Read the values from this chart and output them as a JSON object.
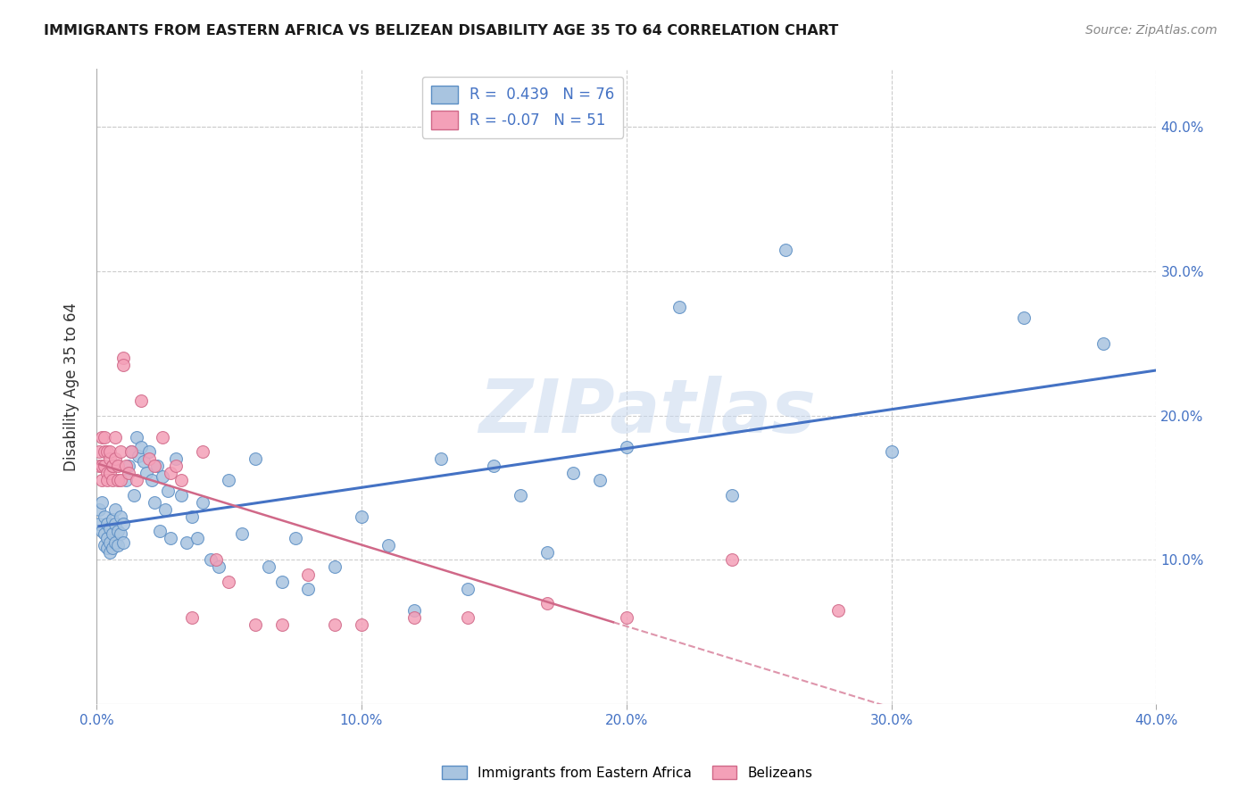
{
  "title": "IMMIGRANTS FROM EASTERN AFRICA VS BELIZEAN DISABILITY AGE 35 TO 64 CORRELATION CHART",
  "source": "Source: ZipAtlas.com",
  "ylabel": "Disability Age 35 to 64",
  "xlim": [
    0.0,
    0.4
  ],
  "ylim": [
    0.0,
    0.42
  ],
  "xtick_labels": [
    "0.0%",
    "",
    "10.0%",
    "",
    "20.0%",
    "",
    "30.0%",
    "",
    "40.0%"
  ],
  "xtick_vals": [
    0.0,
    0.05,
    0.1,
    0.15,
    0.2,
    0.25,
    0.3,
    0.35,
    0.4
  ],
  "xtick_display_labels": [
    "0.0%",
    "10.0%",
    "20.0%",
    "30.0%",
    "40.0%"
  ],
  "xtick_display_vals": [
    0.0,
    0.1,
    0.2,
    0.3,
    0.4
  ],
  "ytick_labels": [
    "10.0%",
    "20.0%",
    "30.0%",
    "40.0%"
  ],
  "ytick_vals": [
    0.1,
    0.2,
    0.3,
    0.4
  ],
  "blue_R": 0.439,
  "blue_N": 76,
  "pink_R": -0.07,
  "pink_N": 51,
  "blue_color": "#a8c4e0",
  "pink_color": "#f4a0b8",
  "blue_edge_color": "#5b8ec4",
  "pink_edge_color": "#d06888",
  "blue_line_color": "#4472c4",
  "pink_line_color": "#d06888",
  "watermark": "ZIPatlas",
  "blue_x": [
    0.001,
    0.001,
    0.002,
    0.002,
    0.003,
    0.003,
    0.003,
    0.004,
    0.004,
    0.004,
    0.005,
    0.005,
    0.005,
    0.006,
    0.006,
    0.006,
    0.007,
    0.007,
    0.007,
    0.008,
    0.008,
    0.009,
    0.009,
    0.01,
    0.01,
    0.011,
    0.012,
    0.013,
    0.014,
    0.015,
    0.016,
    0.017,
    0.018,
    0.019,
    0.02,
    0.021,
    0.022,
    0.023,
    0.024,
    0.025,
    0.026,
    0.027,
    0.028,
    0.03,
    0.032,
    0.034,
    0.036,
    0.038,
    0.04,
    0.043,
    0.046,
    0.05,
    0.055,
    0.06,
    0.065,
    0.07,
    0.075,
    0.08,
    0.09,
    0.1,
    0.11,
    0.12,
    0.13,
    0.14,
    0.15,
    0.16,
    0.17,
    0.18,
    0.19,
    0.2,
    0.22,
    0.24,
    0.26,
    0.3,
    0.35,
    0.38
  ],
  "blue_y": [
    0.135,
    0.125,
    0.14,
    0.12,
    0.13,
    0.118,
    0.11,
    0.125,
    0.115,
    0.108,
    0.122,
    0.112,
    0.105,
    0.128,
    0.118,
    0.108,
    0.135,
    0.125,
    0.112,
    0.12,
    0.11,
    0.13,
    0.118,
    0.125,
    0.112,
    0.155,
    0.165,
    0.175,
    0.145,
    0.185,
    0.172,
    0.178,
    0.168,
    0.16,
    0.175,
    0.155,
    0.14,
    0.165,
    0.12,
    0.158,
    0.135,
    0.148,
    0.115,
    0.17,
    0.145,
    0.112,
    0.13,
    0.115,
    0.14,
    0.1,
    0.095,
    0.155,
    0.118,
    0.17,
    0.095,
    0.085,
    0.115,
    0.08,
    0.095,
    0.13,
    0.11,
    0.065,
    0.17,
    0.08,
    0.165,
    0.145,
    0.105,
    0.16,
    0.155,
    0.178,
    0.275,
    0.145,
    0.315,
    0.175,
    0.268,
    0.25
  ],
  "pink_x": [
    0.001,
    0.001,
    0.002,
    0.002,
    0.002,
    0.003,
    0.003,
    0.003,
    0.004,
    0.004,
    0.004,
    0.005,
    0.005,
    0.005,
    0.006,
    0.006,
    0.006,
    0.007,
    0.007,
    0.008,
    0.008,
    0.009,
    0.009,
    0.01,
    0.01,
    0.011,
    0.012,
    0.013,
    0.015,
    0.017,
    0.02,
    0.022,
    0.025,
    0.028,
    0.03,
    0.032,
    0.036,
    0.04,
    0.045,
    0.05,
    0.06,
    0.07,
    0.08,
    0.09,
    0.1,
    0.12,
    0.14,
    0.17,
    0.2,
    0.24,
    0.28
  ],
  "pink_y": [
    0.175,
    0.165,
    0.185,
    0.165,
    0.155,
    0.175,
    0.165,
    0.185,
    0.175,
    0.16,
    0.155,
    0.17,
    0.16,
    0.175,
    0.165,
    0.155,
    0.165,
    0.17,
    0.185,
    0.155,
    0.165,
    0.175,
    0.155,
    0.24,
    0.235,
    0.165,
    0.16,
    0.175,
    0.155,
    0.21,
    0.17,
    0.165,
    0.185,
    0.16,
    0.165,
    0.155,
    0.06,
    0.175,
    0.1,
    0.085,
    0.055,
    0.055,
    0.09,
    0.055,
    0.055,
    0.06,
    0.06,
    0.07,
    0.06,
    0.1,
    0.065
  ],
  "pink_solid_xlim": [
    0.001,
    0.195
  ],
  "pink_dash_xlim": [
    0.195,
    0.4
  ]
}
